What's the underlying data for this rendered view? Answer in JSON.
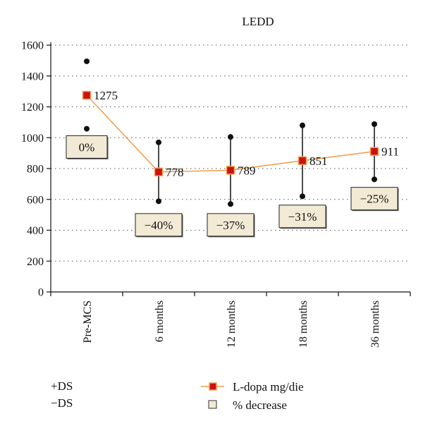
{
  "chart_data": {
    "type": "line",
    "title": "LEDD",
    "categories": [
      "Pre-MCS",
      "6 months",
      "12 months",
      "18 months",
      "36 months"
    ],
    "series": [
      {
        "name": "L-dopa mg/die",
        "values": [
          1275,
          778,
          789,
          851,
          911
        ],
        "color": "#f0a050",
        "marker_color": "#cc1111"
      }
    ],
    "value_labels": [
      "1275",
      "778",
      "789",
      "851",
      "911"
    ],
    "range_high": [
      1495,
      970,
      1005,
      1080,
      1088
    ],
    "range_low": [
      1058,
      588,
      570,
      620,
      730
    ],
    "percent_decrease": [
      "0%",
      "−40%",
      "−37%",
      "−31%",
      "−25%"
    ],
    "percent_box_center_value": [
      940,
      435,
      435,
      490,
      605
    ],
    "ylim": [
      0,
      1600
    ],
    "yticks": [
      "0",
      "200",
      "400",
      "600",
      "800",
      "1000",
      "1200",
      "1400",
      "1600"
    ],
    "grid": true,
    "legend": {
      "line_label": "L-dopa mg/die",
      "box_label": "% decrease",
      "plus_label": "+DS",
      "minus_label": "−DS"
    },
    "box_fill": "#f3ead5"
  }
}
